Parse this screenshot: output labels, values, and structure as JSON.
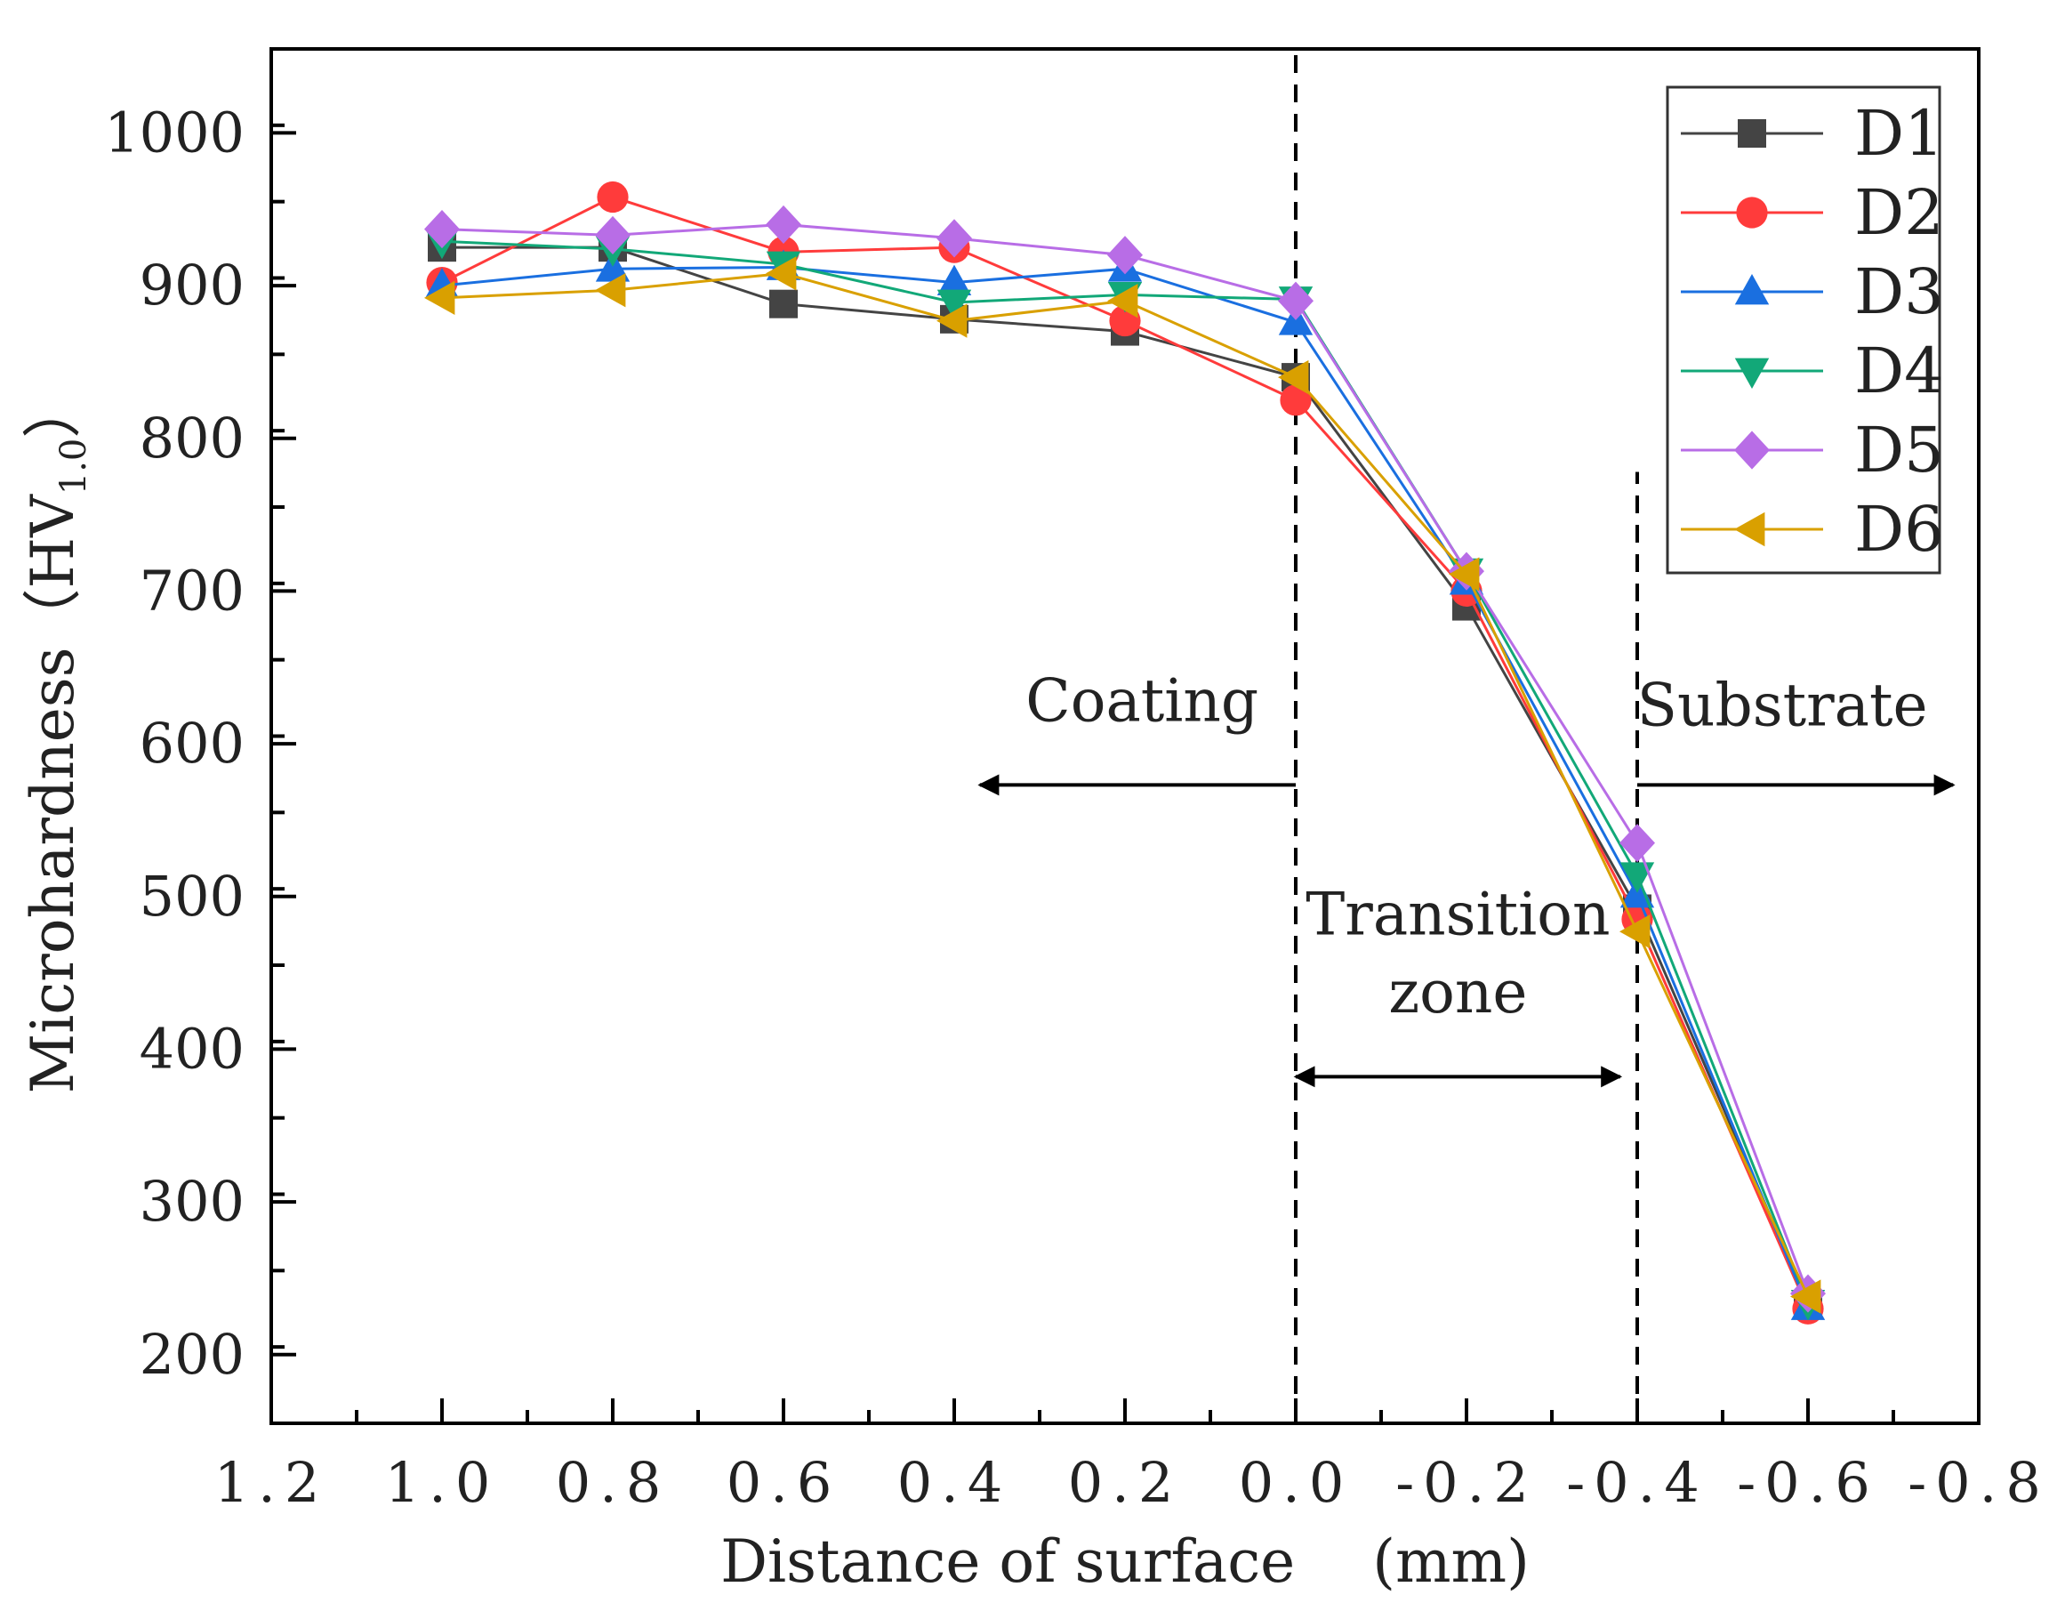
{
  "chart_data": {
    "type": "line",
    "title": "",
    "xlabel": "Distance of surface　 (mm)",
    "ylabel_main": "Microhardness（HV",
    "ylabel_sub": "1.0",
    "ylabel_close": "）",
    "xlim": [
      1.2,
      -0.8
    ],
    "ylim": [
      155,
      1055
    ],
    "x_ticks": [
      1.2,
      1.0,
      0.8,
      0.6,
      0.4,
      0.2,
      0.0,
      -0.2,
      -0.4,
      -0.6,
      -0.8
    ],
    "x_tick_labels": [
      "1.2",
      "1.0",
      "0.8",
      "0.6",
      "0.4",
      "0.2",
      "0.0",
      "-0.2",
      "-0.4",
      "-0.6",
      "-0.8"
    ],
    "y_ticks": [
      200,
      300,
      400,
      500,
      600,
      700,
      800,
      900,
      1000
    ],
    "y_tick_labels": [
      "200",
      "300",
      "400",
      "500",
      "600",
      "700",
      "800",
      "900",
      "1000"
    ],
    "x": [
      1.0,
      0.8,
      0.6,
      0.4,
      0.2,
      0.0,
      -0.2,
      -0.4,
      -0.6
    ],
    "series": [
      {
        "name": "D1",
        "color": "#444444",
        "marker": "square",
        "values": [
          925,
          925,
          888,
          878,
          870,
          840,
          690,
          492,
          233
        ]
      },
      {
        "name": "D2",
        "color": "#ff3b3b",
        "marker": "circle",
        "values": [
          902,
          958,
          922,
          925,
          877,
          825,
          700,
          485,
          230
        ]
      },
      {
        "name": "D3",
        "color": "#1a6fe0",
        "marker": "triangle-up",
        "values": [
          900,
          911,
          912,
          902,
          911,
          876,
          706,
          501,
          231
        ]
      },
      {
        "name": "D4",
        "color": "#12a878",
        "marker": "triangle-down",
        "values": [
          929,
          924,
          914,
          889,
          894,
          891,
          713,
          514,
          234
        ]
      },
      {
        "name": "D5",
        "color": "#b86de6",
        "marker": "diamond",
        "values": [
          937,
          933,
          940,
          931,
          920,
          890,
          713,
          535,
          240
        ]
      },
      {
        "name": "D6",
        "color": "#d9a000",
        "marker": "triangle-left",
        "values": [
          892,
          897,
          908,
          877,
          890,
          840,
          711,
          477,
          238
        ]
      }
    ],
    "legend_position": "top-right",
    "grid": false,
    "boundaries": [
      {
        "x": 0.0,
        "y_from": 155,
        "y_to": 1055
      },
      {
        "x": -0.4,
        "y_from": 155,
        "y_to": 778
      }
    ],
    "annotations": [
      {
        "text": "Coating",
        "x": 0.18,
        "y": 615
      },
      {
        "text": "Substrate",
        "x": -0.57,
        "y": 612
      },
      {
        "text": "Transition",
        "x": -0.19,
        "y": 475
      },
      {
        "text": "zone",
        "x": -0.19,
        "y": 424
      }
    ],
    "arrows": [
      {
        "from_x": 0.0,
        "to_x": 0.37,
        "y": 573
      },
      {
        "from_x": -0.4,
        "to_x": -0.77,
        "y": 573
      },
      {
        "from_x": 0.0,
        "to_x": -0.38,
        "y": 382,
        "double": true
      }
    ]
  }
}
